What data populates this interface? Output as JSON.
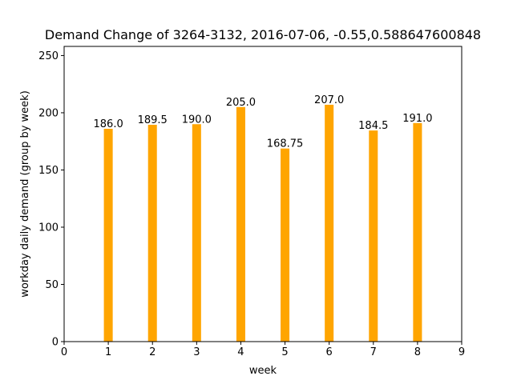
{
  "chart_data": {
    "type": "bar",
    "title": "Demand Change of 3264-3132, 2016-07-06, -0.55,0.588647600848",
    "xlabel": "week",
    "ylabel": "workday daily demand (group by week)",
    "x": [
      1,
      2,
      3,
      4,
      5,
      6,
      7,
      8
    ],
    "values": [
      186.0,
      189.5,
      190.0,
      205.0,
      168.75,
      207.0,
      184.5,
      191.0
    ],
    "data_labels": [
      "186.0",
      "189.5",
      "190.0",
      "205.0",
      "168.75",
      "207.0",
      "184.5",
      "191.0"
    ],
    "xlim": [
      0,
      9
    ],
    "ylim": [
      0,
      258
    ],
    "xticks": [
      0,
      1,
      2,
      3,
      4,
      5,
      6,
      7,
      8,
      9
    ],
    "xtick_labels": [
      "0",
      "1",
      "2",
      "3",
      "4",
      "5",
      "6",
      "7",
      "8",
      "9"
    ],
    "yticks": [
      0,
      50,
      100,
      150,
      200,
      250
    ],
    "ytick_labels": [
      "0",
      "50",
      "100",
      "150",
      "200",
      "250"
    ],
    "bar_width": 0.2,
    "bar_color": "#ffa500",
    "grid": false,
    "legend": false
  }
}
